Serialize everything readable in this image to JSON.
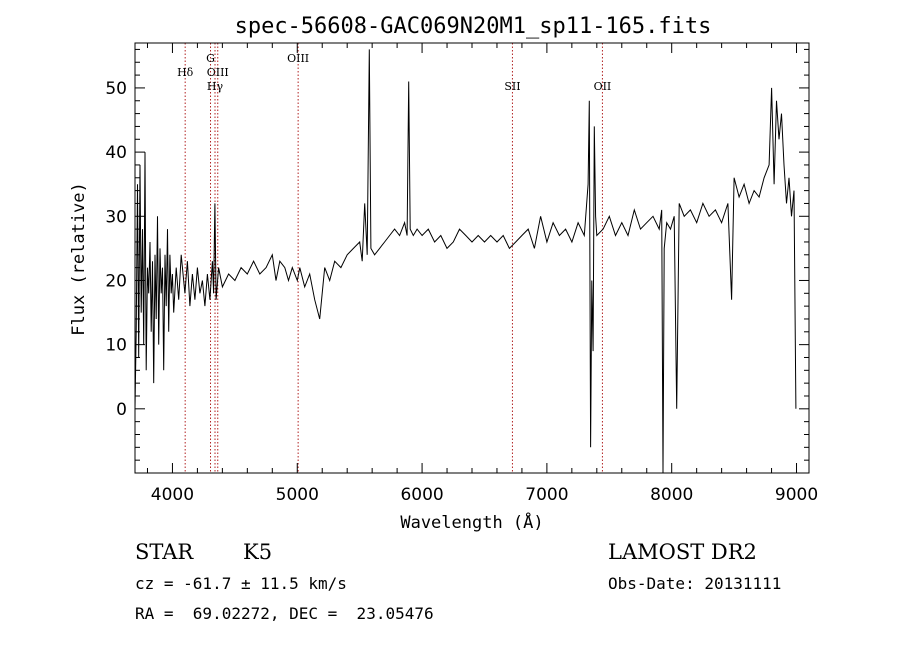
{
  "chart_data": {
    "type": "line",
    "title": "spec-56608-GAC069N20M1_sp11-165.fits",
    "xlabel": "Wavelength (Å)",
    "ylabel": "Flux (relative)",
    "xlim": [
      3700,
      9100
    ],
    "ylim": [
      -10,
      57
    ],
    "xticks": [
      4000,
      5000,
      6000,
      7000,
      8000,
      9000
    ],
    "yticks": [
      0,
      10,
      20,
      30,
      40,
      50
    ],
    "grid": false,
    "line_color": "#000000",
    "marker_color": "#b22222",
    "spectrum": [
      [
        3700,
        0
      ],
      [
        3710,
        12
      ],
      [
        3720,
        35
      ],
      [
        3730,
        8
      ],
      [
        3740,
        38
      ],
      [
        3750,
        15
      ],
      [
        3760,
        28
      ],
      [
        3770,
        10
      ],
      [
        3780,
        40
      ],
      [
        3790,
        6
      ],
      [
        3800,
        22
      ],
      [
        3810,
        18
      ],
      [
        3820,
        26
      ],
      [
        3830,
        12
      ],
      [
        3840,
        23
      ],
      [
        3850,
        4
      ],
      [
        3860,
        24
      ],
      [
        3870,
        14
      ],
      [
        3880,
        30
      ],
      [
        3890,
        10
      ],
      [
        3900,
        25
      ],
      [
        3910,
        18
      ],
      [
        3920,
        22
      ],
      [
        3930,
        6
      ],
      [
        3940,
        24
      ],
      [
        3950,
        16
      ],
      [
        3960,
        28
      ],
      [
        3970,
        12
      ],
      [
        3980,
        24
      ],
      [
        3990,
        18
      ],
      [
        4000,
        21
      ],
      [
        4010,
        15
      ],
      [
        4030,
        22
      ],
      [
        4050,
        17
      ],
      [
        4070,
        24
      ],
      [
        4100,
        18
      ],
      [
        4120,
        23
      ],
      [
        4140,
        16
      ],
      [
        4160,
        21
      ],
      [
        4180,
        17
      ],
      [
        4200,
        22
      ],
      [
        4220,
        18
      ],
      [
        4240,
        20
      ],
      [
        4260,
        16
      ],
      [
        4280,
        21
      ],
      [
        4300,
        17
      ],
      [
        4320,
        23
      ],
      [
        4330,
        18
      ],
      [
        4340,
        32
      ],
      [
        4350,
        17
      ],
      [
        4370,
        22
      ],
      [
        4400,
        19
      ],
      [
        4450,
        21
      ],
      [
        4500,
        20
      ],
      [
        4550,
        22
      ],
      [
        4600,
        21
      ],
      [
        4650,
        23
      ],
      [
        4700,
        21
      ],
      [
        4750,
        22
      ],
      [
        4800,
        24
      ],
      [
        4830,
        20
      ],
      [
        4860,
        23
      ],
      [
        4900,
        22
      ],
      [
        4930,
        20
      ],
      [
        4960,
        22
      ],
      [
        5000,
        20
      ],
      [
        5020,
        22
      ],
      [
        5060,
        19
      ],
      [
        5100,
        21
      ],
      [
        5140,
        17
      ],
      [
        5180,
        14
      ],
      [
        5220,
        22
      ],
      [
        5260,
        20
      ],
      [
        5300,
        23
      ],
      [
        5350,
        22
      ],
      [
        5400,
        24
      ],
      [
        5450,
        25
      ],
      [
        5500,
        26
      ],
      [
        5520,
        23
      ],
      [
        5540,
        32
      ],
      [
        5560,
        24
      ],
      [
        5577,
        56
      ],
      [
        5590,
        25
      ],
      [
        5620,
        24
      ],
      [
        5660,
        25
      ],
      [
        5700,
        26
      ],
      [
        5740,
        27
      ],
      [
        5780,
        28
      ],
      [
        5820,
        27
      ],
      [
        5860,
        29
      ],
      [
        5880,
        27
      ],
      [
        5893,
        51
      ],
      [
        5905,
        28
      ],
      [
        5930,
        27
      ],
      [
        5960,
        28
      ],
      [
        6000,
        27
      ],
      [
        6050,
        28
      ],
      [
        6100,
        26
      ],
      [
        6150,
        27
      ],
      [
        6200,
        25
      ],
      [
        6250,
        26
      ],
      [
        6300,
        28
      ],
      [
        6350,
        27
      ],
      [
        6400,
        26
      ],
      [
        6450,
        27
      ],
      [
        6500,
        26
      ],
      [
        6550,
        27
      ],
      [
        6600,
        26
      ],
      [
        6650,
        27
      ],
      [
        6700,
        25
      ],
      [
        6750,
        26
      ],
      [
        6800,
        27
      ],
      [
        6850,
        28
      ],
      [
        6900,
        25
      ],
      [
        6950,
        30
      ],
      [
        7000,
        26
      ],
      [
        7050,
        29
      ],
      [
        7100,
        27
      ],
      [
        7150,
        28
      ],
      [
        7200,
        26
      ],
      [
        7250,
        29
      ],
      [
        7300,
        27
      ],
      [
        7330,
        35
      ],
      [
        7340,
        48
      ],
      [
        7350,
        -6
      ],
      [
        7360,
        20
      ],
      [
        7370,
        9
      ],
      [
        7380,
        44
      ],
      [
        7390,
        30
      ],
      [
        7400,
        27
      ],
      [
        7450,
        28
      ],
      [
        7500,
        30
      ],
      [
        7550,
        27
      ],
      [
        7600,
        29
      ],
      [
        7650,
        27
      ],
      [
        7700,
        31
      ],
      [
        7750,
        28
      ],
      [
        7800,
        29
      ],
      [
        7850,
        30
      ],
      [
        7900,
        28
      ],
      [
        7920,
        31
      ],
      [
        7930,
        -10
      ],
      [
        7940,
        25
      ],
      [
        7960,
        29
      ],
      [
        7990,
        28
      ],
      [
        8020,
        30
      ],
      [
        8040,
        0
      ],
      [
        8060,
        32
      ],
      [
        8100,
        30
      ],
      [
        8150,
        31
      ],
      [
        8200,
        29
      ],
      [
        8250,
        32
      ],
      [
        8300,
        30
      ],
      [
        8350,
        31
      ],
      [
        8400,
        29
      ],
      [
        8450,
        32
      ],
      [
        8480,
        17
      ],
      [
        8500,
        36
      ],
      [
        8540,
        33
      ],
      [
        8580,
        35
      ],
      [
        8620,
        32
      ],
      [
        8660,
        34
      ],
      [
        8700,
        33
      ],
      [
        8740,
        36
      ],
      [
        8780,
        38
      ],
      [
        8800,
        50
      ],
      [
        8820,
        35
      ],
      [
        8840,
        48
      ],
      [
        8860,
        42
      ],
      [
        8880,
        46
      ],
      [
        8900,
        38
      ],
      [
        8920,
        32
      ],
      [
        8940,
        36
      ],
      [
        8960,
        30
      ],
      [
        8980,
        34
      ],
      [
        8995,
        0
      ]
    ],
    "lines": [
      {
        "label": "Hδ",
        "x": 4102,
        "row": 1
      },
      {
        "label": "G",
        "x": 4305,
        "row": 0
      },
      {
        "label": "OIII",
        "x": 4363,
        "row": 1
      },
      {
        "label": "Hγ",
        "x": 4341,
        "row": 2
      },
      {
        "label": "OIII",
        "x": 5007,
        "row": 0
      },
      {
        "label": "SII",
        "x": 6724,
        "row": 2
      },
      {
        "label": "OII",
        "x": 7445,
        "row": 2
      }
    ]
  },
  "info": {
    "class_label": "STAR",
    "subclass_label": "K5",
    "survey_label": "LAMOST DR2",
    "cz_line": "cz = -61.7 ± 11.5 km/s",
    "obs_date_line": "Obs-Date: 20131111",
    "radec_line": "RA =  69.02272, DEC =  23.05476"
  }
}
